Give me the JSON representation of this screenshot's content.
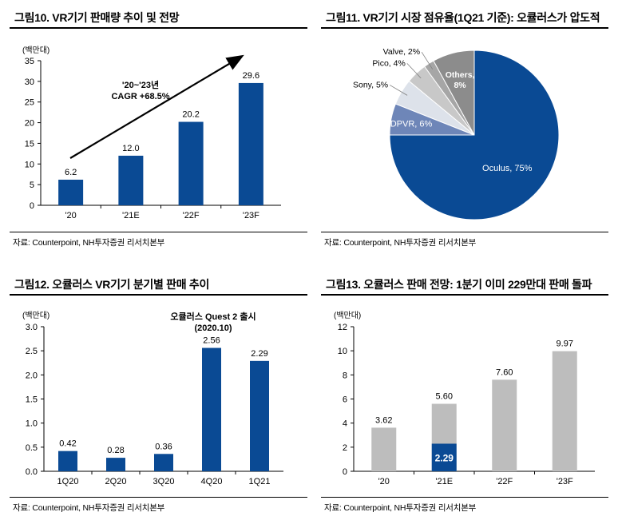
{
  "source": "자료: Counterpoint, NH투자증권 리서치본부",
  "colors": {
    "navy": "#0a4a94",
    "gray": "#bdbdbd",
    "axis": "#000000"
  },
  "chart_data": [
    {
      "id": "fig10",
      "type": "bar",
      "title": "그림10. VR기기 판매량 추이 및 전망",
      "unit": "(백만대)",
      "categories": [
        "'20",
        "'21E",
        "'22F",
        "'23F"
      ],
      "values": [
        6.2,
        12.0,
        20.2,
        29.6
      ],
      "value_labels": [
        "6.2",
        "12.0",
        "20.2",
        "29.6"
      ],
      "ylim": [
        0,
        35
      ],
      "yticks": [
        0,
        5,
        10,
        15,
        20,
        25,
        30,
        35
      ],
      "annotation": {
        "line1": "'20~'23년",
        "line2": "CAGR +68.5%"
      }
    },
    {
      "id": "fig11",
      "type": "pie",
      "title": "그림11. VR기기 시장 점유율(1Q21 기준): 오큘러스가 압도적",
      "slices": [
        {
          "name": "Oculus",
          "value": 75,
          "label": "Oculus, 75%",
          "color": "#0a4a94"
        },
        {
          "name": "DPVR",
          "value": 6,
          "label": "DPVR, 6%",
          "color": "#6e86b8"
        },
        {
          "name": "Sony",
          "value": 5,
          "label": "Sony, 5%",
          "color": "#dde2ea"
        },
        {
          "name": "Pico",
          "value": 4,
          "label": "Pico, 4%",
          "color": "#c8c8c8"
        },
        {
          "name": "Valve",
          "value": 2,
          "label": "Valve, 2%",
          "color": "#a6a6a6"
        },
        {
          "name": "Others",
          "value": 8,
          "label1": "Others,",
          "label2": "8%",
          "color": "#8c8c8c"
        }
      ]
    },
    {
      "id": "fig12",
      "type": "bar",
      "title": "그림12. 오큘러스 VR기기 분기별 판매 추이",
      "unit": "(백만대)",
      "categories": [
        "1Q20",
        "2Q20",
        "3Q20",
        "4Q20",
        "1Q21"
      ],
      "values": [
        0.42,
        0.28,
        0.36,
        2.56,
        2.29
      ],
      "value_labels": [
        "0.42",
        "0.28",
        "0.36",
        "2.56",
        "2.29"
      ],
      "ylim": [
        0,
        3.0
      ],
      "yticks": [
        "0.0",
        "0.5",
        "1.0",
        "1.5",
        "2.0",
        "2.5",
        "3.0"
      ],
      "annotation": {
        "line1": "오큘러스 Quest 2 출시",
        "line2": "(2020.10)"
      }
    },
    {
      "id": "fig13",
      "type": "bar",
      "title": "그림13. 오큘러스 판매 전망: 1분기 이미 229만대 판매 돌파",
      "unit": "(백만대)",
      "categories": [
        "'20",
        "'21E",
        "'22F",
        "'23F"
      ],
      "values": [
        3.62,
        5.6,
        7.6,
        9.97
      ],
      "value_labels": [
        "3.62",
        "5.60",
        "7.60",
        "9.97"
      ],
      "highlight": {
        "category": "'21E",
        "value": 2.29,
        "label": "2.29"
      },
      "ylim": [
        0,
        12
      ],
      "yticks": [
        0,
        2,
        4,
        6,
        8,
        10,
        12
      ]
    }
  ]
}
